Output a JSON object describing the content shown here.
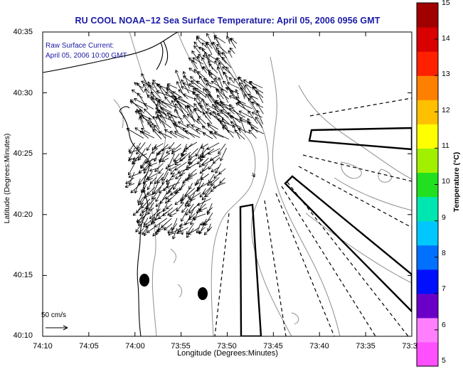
{
  "title": "RU COOL  NOAA−12  Sea Surface Temperature:  April 05, 2006 0956 GMT",
  "annotation": {
    "line1": "Raw Surface Current:",
    "line2": "April 05, 2006 10:00 GMT"
  },
  "axes": {
    "xlabel": "Longitude (Degrees:Minutes)",
    "ylabel": "Latitude (Degrees:Minutes)",
    "xticks": [
      "74:10",
      "74:05",
      "74:00",
      "73:55",
      "73:50",
      "73:45",
      "73:40",
      "73:35",
      "73:3"
    ],
    "yticks": [
      "40:35",
      "40:30",
      "40:25",
      "40:20",
      "40:15",
      "40:10"
    ]
  },
  "colorbar": {
    "label": "Temperature (°C)",
    "ticks": [
      "15",
      "14",
      "13",
      "12",
      "11",
      "10",
      "9",
      "8",
      "7",
      "6",
      "5"
    ],
    "colors": [
      "#ff4fff",
      "#ff7fff",
      "#6a00c8",
      "#0010ff",
      "#0070ff",
      "#00c8ff",
      "#00e6b0",
      "#20e020",
      "#a0f000",
      "#ffff00",
      "#ffc000",
      "#ff8000",
      "#ff2000",
      "#d80000",
      "#a00000"
    ]
  },
  "scale_label": "50 cm/s",
  "colors": {
    "title": "#1a1aa6",
    "contour": "#909090",
    "coast": "#000000"
  }
}
